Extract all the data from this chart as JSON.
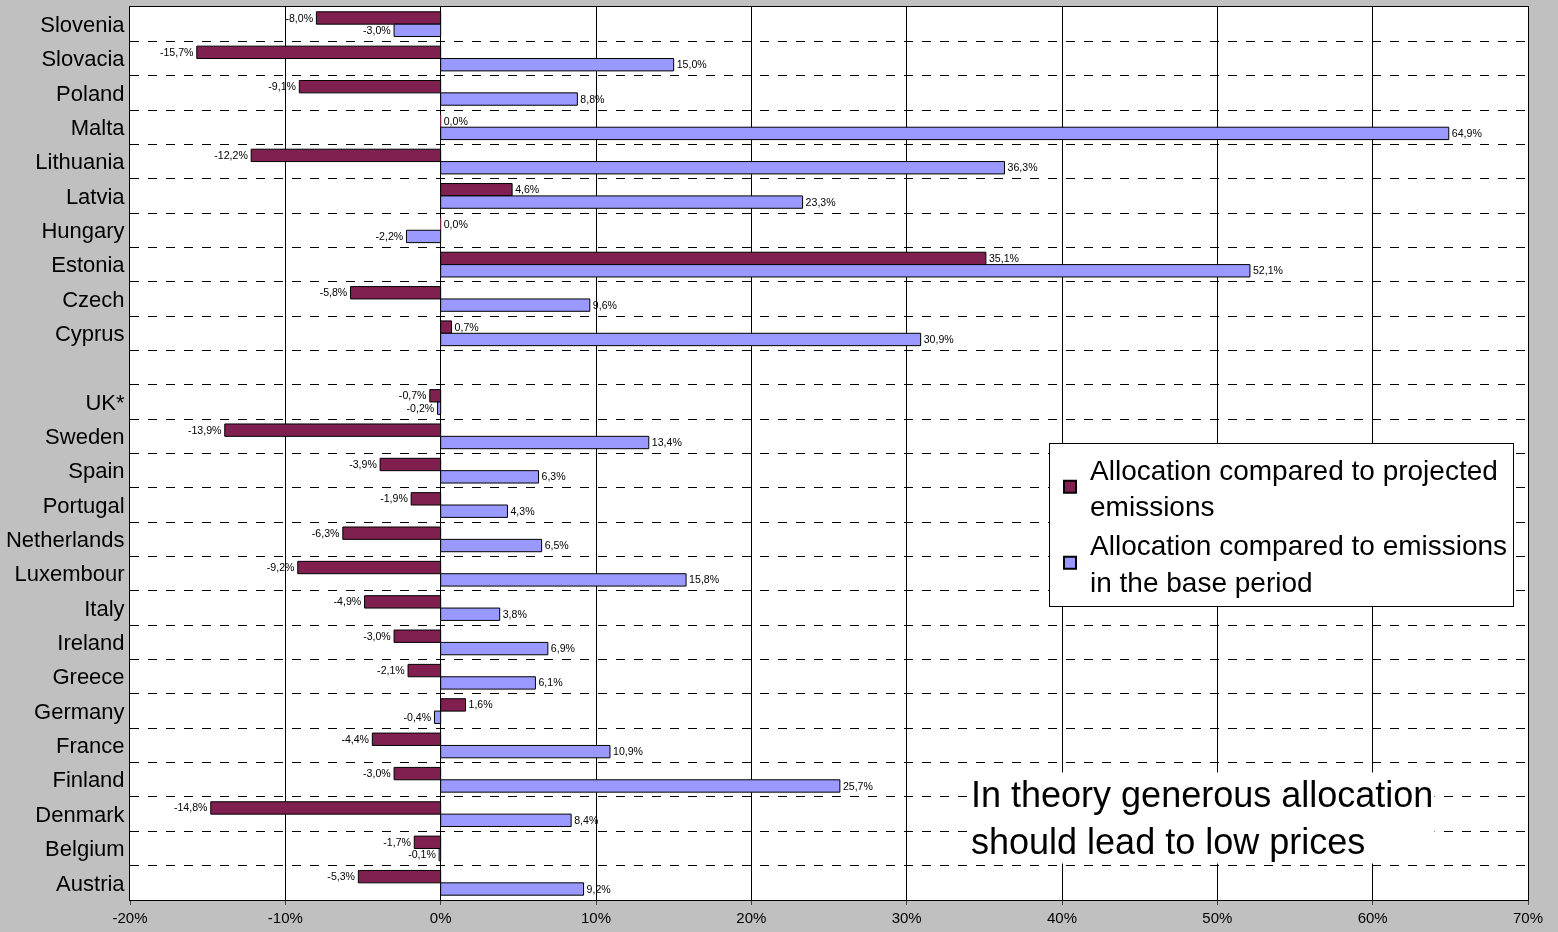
{
  "chart_data": {
    "type": "bar",
    "orientation": "horizontal",
    "grid": true,
    "legend": "right",
    "data_labels": false,
    "categories": [
      "Slovenia",
      "Slovacia",
      "Poland",
      "Malta",
      "Lithuania",
      "Latvia",
      "Hungary",
      "Estonia",
      "Czech",
      "Cyprus",
      null,
      "UK*",
      "Sweden",
      "Spain",
      "Portugal",
      "Netherlands",
      "Luxembour",
      "Italy",
      "Ireland",
      "Greece",
      "Germany",
      "France",
      "Finland",
      "Denmark",
      "Belgium",
      "Austria"
    ],
    "xlim": [
      -20,
      70
    ],
    "xticks": [
      {
        "value": -20,
        "label": "-20%"
      },
      {
        "value": -10,
        "label": "-10%"
      },
      {
        "value": 0,
        "label": "0%"
      },
      {
        "value": 10,
        "label": "10%"
      },
      {
        "value": 20,
        "label": "20%"
      },
      {
        "value": 30,
        "label": "30%"
      },
      {
        "value": 40,
        "label": "40%"
      },
      {
        "value": 50,
        "label": "50%"
      },
      {
        "value": 60,
        "label": "60%"
      },
      {
        "value": 70,
        "label": "70%"
      }
    ],
    "series": [
      {
        "name": "Allocation compared to projected emissions",
        "color": "#7f2050",
        "values": [
          -8.0,
          -15.7,
          -9.1,
          0.0,
          -12.2,
          4.6,
          0.0,
          35.1,
          -5.8,
          0.7,
          null,
          -0.7,
          -13.9,
          -3.9,
          -1.9,
          -6.3,
          -9.2,
          -4.9,
          -3.0,
          -2.1,
          1.6,
          -4.4,
          -3.0,
          -14.8,
          -1.7,
          -5.3
        ],
        "value_labels": [
          "-8,0%",
          "-15,7%",
          "-9,1%",
          "0,0%",
          "-12,2%",
          "4,6%",
          "0,0%",
          "35,1%",
          "-5,8%",
          "0,7%",
          null,
          "-0,7%",
          "-13,9%",
          "-3,9%",
          "-1,9%",
          "-6,3%",
          "-9,2%",
          "-4,9%",
          "-3,0%",
          "-2,1%",
          "1,6%",
          "-4,4%",
          "-3,0%",
          "-14,8%",
          "-1,7%",
          "-5,3%"
        ]
      },
      {
        "name": "Allocation compared to emissions in the base period",
        "color": "#9999ff",
        "values": [
          -3.0,
          15.0,
          8.8,
          64.9,
          36.3,
          23.3,
          -2.2,
          52.1,
          9.6,
          30.9,
          null,
          -0.2,
          13.4,
          6.3,
          4.3,
          6.5,
          15.8,
          3.8,
          6.9,
          6.1,
          -0.4,
          10.9,
          25.7,
          8.4,
          -0.1,
          9.2
        ],
        "value_labels": [
          "-3,0%",
          "15,0%",
          "8,8%",
          "64,9%",
          "36,3%",
          "23,3%",
          "-2,2%",
          "52,1%",
          "9,6%",
          "30,9%",
          null,
          "-0,2%",
          "13,4%",
          "6,3%",
          "4,3%",
          "6,5%",
          "15,8%",
          "3,8%",
          "6,9%",
          "6,1%",
          "-0,4%",
          "10,9%",
          "25,7%",
          "8,4%",
          "-0,1%",
          "9,2%"
        ]
      }
    ],
    "annotations": [
      "In theory generous allocation should lead to low prices"
    ]
  }
}
